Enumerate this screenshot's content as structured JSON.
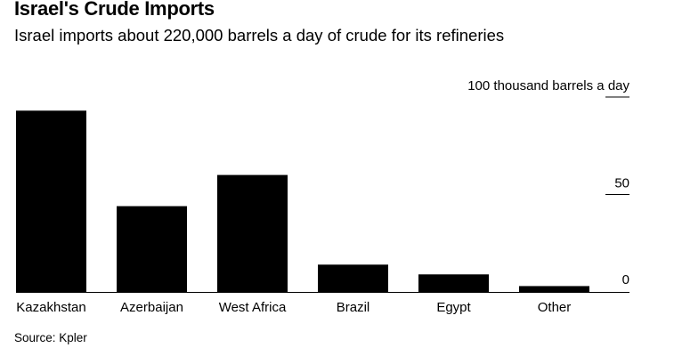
{
  "title": "Israel's Crude Imports",
  "subtitle": "Israel imports about 220,000 barrels a day of crude for its refineries",
  "source": "Source: Kpler",
  "chart_data": {
    "type": "bar",
    "categories": [
      "Kazakhstan",
      "Azerbaijan",
      "West Africa",
      "Brazil",
      "Egypt",
      "Other"
    ],
    "values": [
      93,
      44,
      60,
      14,
      9,
      3
    ],
    "ylim": [
      0,
      100
    ],
    "yticks": [
      {
        "value": 100,
        "label": "100 thousand barrels a day"
      },
      {
        "value": 50,
        "label": "50"
      },
      {
        "value": 0,
        "label": "0"
      }
    ],
    "axis_position": "right",
    "bar_color": "#000000",
    "grid": false
  }
}
